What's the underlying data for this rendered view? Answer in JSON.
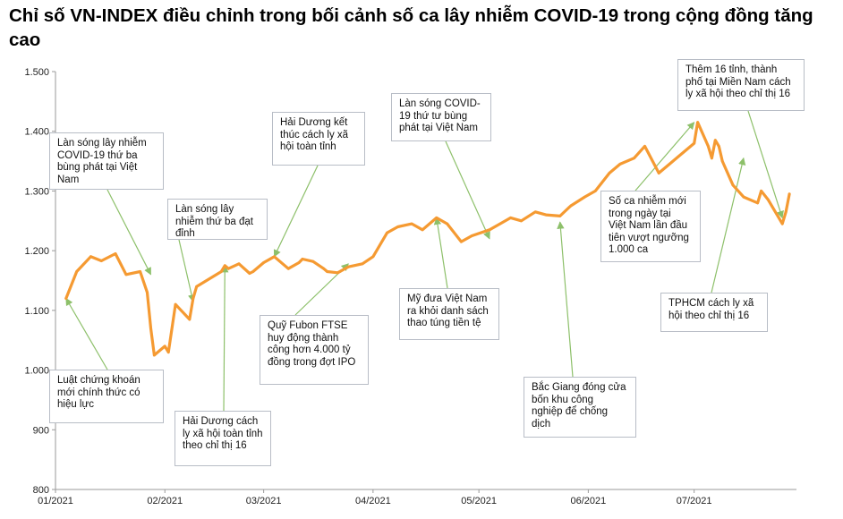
{
  "chart_data": {
    "type": "line",
    "title": "Chỉ số VN-INDEX điều chỉnh trong bối cảnh số ca lây nhiễm COVID-19 trong cộng đồng tăng cao",
    "xlabel": "",
    "ylabel": "",
    "ylim": [
      800,
      1500
    ],
    "yticks": [
      "800",
      "900",
      "1.000",
      "1.100",
      "1.200",
      "1.300",
      "1.400",
      "1.500"
    ],
    "xticks": [
      "01/2021",
      "02/2021",
      "03/2021",
      "04/2021",
      "05/2021",
      "06/2021",
      "07/2021"
    ],
    "grid": false,
    "line_color": "#f59a32",
    "series": [
      {
        "name": "",
        "x": [
          "2021-01-04",
          "2021-01-07",
          "2021-01-11",
          "2021-01-14",
          "2021-01-18",
          "2021-01-21",
          "2021-01-25",
          "2021-01-27",
          "2021-01-28",
          "2021-01-29",
          "2021-02-01",
          "2021-02-02",
          "2021-02-04",
          "2021-02-08",
          "2021-02-09",
          "2021-02-10",
          "2021-02-17",
          "2021-02-18",
          "2021-02-19",
          "2021-02-22",
          "2021-02-25",
          "2021-02-26",
          "2021-03-01",
          "2021-03-04",
          "2021-03-08",
          "2021-03-11",
          "2021-03-12",
          "2021-03-15",
          "2021-03-18",
          "2021-03-19",
          "2021-03-22",
          "2021-03-25",
          "2021-03-29",
          "2021-04-01",
          "2021-04-05",
          "2021-04-08",
          "2021-04-12",
          "2021-04-15",
          "2021-04-19",
          "2021-04-22",
          "2021-04-26",
          "2021-04-29",
          "2021-05-04",
          "2021-05-07",
          "2021-05-10",
          "2021-05-13",
          "2021-05-17",
          "2021-05-20",
          "2021-05-24",
          "2021-05-27",
          "2021-05-31",
          "2021-06-03",
          "2021-06-07",
          "2021-06-10",
          "2021-06-14",
          "2021-06-17",
          "2021-06-21",
          "2021-06-24",
          "2021-06-28",
          "2021-07-01",
          "2021-07-02",
          "2021-07-05",
          "2021-07-06",
          "2021-07-07",
          "2021-07-08",
          "2021-07-09",
          "2021-07-12",
          "2021-07-15",
          "2021-07-19",
          "2021-07-20",
          "2021-07-22",
          "2021-07-23",
          "2021-07-26",
          "2021-07-27",
          "2021-07-28"
        ],
        "values": [
          1120,
          1165,
          1190,
          1183,
          1195,
          1160,
          1165,
          1130,
          1070,
          1025,
          1040,
          1030,
          1110,
          1085,
          1120,
          1140,
          1165,
          1175,
          1170,
          1178,
          1162,
          1165,
          1180,
          1190,
          1170,
          1180,
          1186,
          1182,
          1170,
          1165,
          1163,
          1173,
          1178,
          1190,
          1230,
          1240,
          1245,
          1235,
          1255,
          1245,
          1215,
          1225,
          1235,
          1245,
          1255,
          1250,
          1265,
          1260,
          1258,
          1275,
          1290,
          1300,
          1330,
          1345,
          1355,
          1375,
          1330,
          1345,
          1365,
          1380,
          1415,
          1375,
          1355,
          1385,
          1375,
          1350,
          1310,
          1290,
          1280,
          1300,
          1285,
          1275,
          1245,
          1265,
          1295
        ]
      }
    ],
    "annotations": [
      {
        "text_lines": [
          "Làn sóng lây nhiễm",
          "COVID-19 thứ ba",
          "bùng phát tại Việt",
          "Nam"
        ],
        "x": "2021-01-28",
        "y": 1160
      },
      {
        "text_lines": [
          "Làn sóng lây",
          "nhiễm thứ ba đạt",
          "đỉnh"
        ],
        "x": "2021-02-09",
        "y": 1115
      },
      {
        "text_lines": [
          "Hải Dương kết",
          "thúc cách ly xã",
          "hội toàn tỉnh"
        ],
        "x": "2021-03-04",
        "y": 1190
      },
      {
        "text_lines": [
          "Làn sóng COVID-",
          "19 thứ tư bùng",
          "phát tại Việt Nam"
        ],
        "x": "2021-05-04",
        "y": 1220
      },
      {
        "text_lines": [
          "Thêm 16 tỉnh, thành",
          "phố tại Miền Nam cách",
          "ly xã hội theo chỉ thị 16"
        ],
        "x": "2021-07-26",
        "y": 1255
      },
      {
        "text_lines": [
          "Số ca nhiễm mới",
          "trong ngày tại",
          "Việt Nam lần đầu",
          "tiên vượt ngưỡng",
          "1.000 ca"
        ],
        "x": "2021-07-01",
        "y": 1415
      },
      {
        "text_lines": [
          "Quỹ Fubon FTSE",
          "huy động thành",
          "công hơn 4.000 tỷ",
          "đồng trong đợt IPO"
        ],
        "x": "2021-03-25",
        "y": 1178
      },
      {
        "text_lines": [
          "Mỹ đưa Việt Nam",
          "ra khỏi danh sách",
          "thao túng tiền tệ"
        ],
        "x": "2021-04-19",
        "y": 1255
      },
      {
        "text_lines": [
          "TPHCM cách ly xã",
          "hội theo chỉ thị 16"
        ],
        "x": "2021-07-15",
        "y": 1355
      },
      {
        "text_lines": [
          "Luật chứng khoán",
          "mới chính thức có",
          "hiệu lực"
        ],
        "x": "2021-01-04",
        "y": 1120
      },
      {
        "text_lines": [
          "Hải Dương cách",
          "ly xã hội toàn tỉnh",
          "theo chỉ thị 16"
        ],
        "x": "2021-02-18",
        "y": 1175
      },
      {
        "text_lines": [
          "Bắc Giang đóng cửa",
          "bốn khu công",
          "nghiệp để chống",
          "dịch"
        ],
        "x": "2021-05-24",
        "y": 1248
      }
    ]
  }
}
